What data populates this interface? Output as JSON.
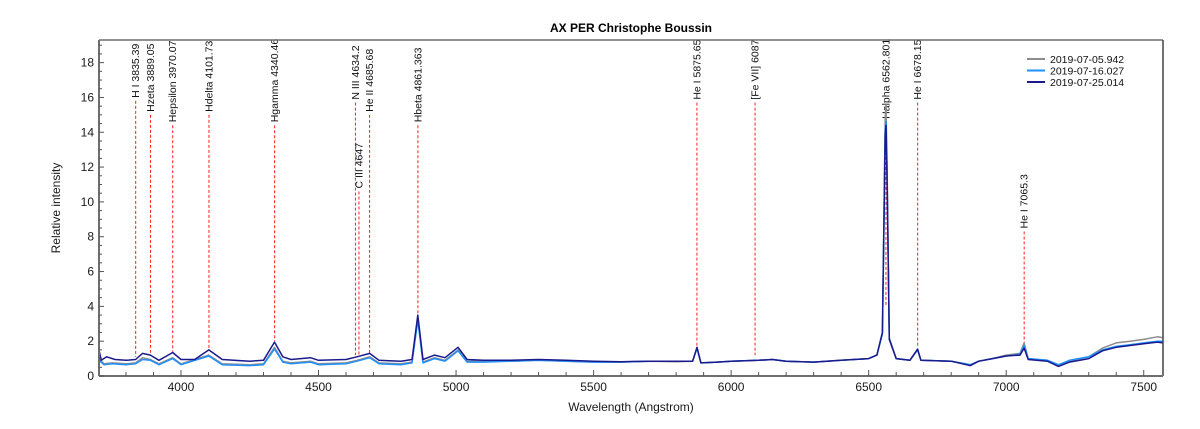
{
  "chart_data": {
    "type": "line",
    "title": "AX PER  Christophe Boussin",
    "xlabel": "Wavelength (Angstrom)",
    "ylabel": "Relative intensity",
    "xlim": [
      3702,
      7570
    ],
    "ylim": [
      0,
      19.3
    ],
    "xticks": [
      4000,
      4500,
      5000,
      5500,
      6000,
      6500,
      7000,
      7500
    ],
    "yticks": [
      0,
      2,
      4,
      6,
      8,
      10,
      12,
      14,
      16,
      18
    ],
    "grid": false,
    "legend_position": "upper right",
    "series": [
      {
        "name": "2019-07-05.942",
        "color": "#8c8c8c",
        "points": [
          [
            3702,
            1.0
          ],
          [
            3720,
            0.7
          ],
          [
            3750,
            0.75
          ],
          [
            3800,
            0.7
          ],
          [
            3835,
            0.75
          ],
          [
            3860,
            1.05
          ],
          [
            3889,
            0.95
          ],
          [
            3920,
            0.7
          ],
          [
            3970,
            1.05
          ],
          [
            4000,
            0.7
          ],
          [
            4101,
            1.2
          ],
          [
            4150,
            0.7
          ],
          [
            4250,
            0.65
          ],
          [
            4300,
            0.7
          ],
          [
            4340,
            1.65
          ],
          [
            4370,
            0.85
          ],
          [
            4400,
            0.75
          ],
          [
            4471,
            0.85
          ],
          [
            4500,
            0.7
          ],
          [
            4600,
            0.75
          ],
          [
            4640,
            0.9
          ],
          [
            4686,
            1.1
          ],
          [
            4720,
            0.75
          ],
          [
            4800,
            0.7
          ],
          [
            4840,
            0.8
          ],
          [
            4861,
            3.3
          ],
          [
            4880,
            0.8
          ],
          [
            4922,
            1.05
          ],
          [
            4960,
            0.9
          ],
          [
            5007,
            1.5
          ],
          [
            5040,
            0.85
          ],
          [
            5100,
            0.85
          ],
          [
            5200,
            0.85
          ],
          [
            5300,
            0.9
          ],
          [
            5400,
            0.85
          ],
          [
            5500,
            0.8
          ],
          [
            5600,
            0.8
          ],
          [
            5700,
            0.85
          ],
          [
            5800,
            0.82
          ],
          [
            5860,
            0.85
          ],
          [
            5876,
            1.6
          ],
          [
            5890,
            0.75
          ],
          [
            5950,
            0.8
          ],
          [
            6000,
            0.85
          ],
          [
            6100,
            0.9
          ],
          [
            6150,
            0.95
          ],
          [
            6200,
            0.85
          ],
          [
            6300,
            0.8
          ],
          [
            6400,
            0.9
          ],
          [
            6500,
            1.0
          ],
          [
            6530,
            1.2
          ],
          [
            6550,
            2.5
          ],
          [
            6560,
            14.8
          ],
          [
            6563,
            15.6
          ],
          [
            6567,
            12.0
          ],
          [
            6575,
            2.2
          ],
          [
            6600,
            1.0
          ],
          [
            6650,
            0.9
          ],
          [
            6678,
            1.5
          ],
          [
            6690,
            0.9
          ],
          [
            6800,
            0.85
          ],
          [
            6870,
            0.65
          ],
          [
            6900,
            0.85
          ],
          [
            6950,
            1.0
          ],
          [
            7000,
            1.2
          ],
          [
            7050,
            1.3
          ],
          [
            7065,
            1.9
          ],
          [
            7080,
            1.0
          ],
          [
            7150,
            0.9
          ],
          [
            7190,
            0.6
          ],
          [
            7230,
            0.85
          ],
          [
            7300,
            1.1
          ],
          [
            7350,
            1.6
          ],
          [
            7400,
            1.9
          ],
          [
            7450,
            2.0
          ],
          [
            7500,
            2.1
          ],
          [
            7550,
            2.25
          ],
          [
            7570,
            2.2
          ]
        ]
      },
      {
        "name": "2019-07-16.027",
        "color": "#1e90ff",
        "points": [
          [
            3702,
            0.9
          ],
          [
            3720,
            0.65
          ],
          [
            3750,
            0.7
          ],
          [
            3800,
            0.65
          ],
          [
            3835,
            0.7
          ],
          [
            3860,
            0.95
          ],
          [
            3889,
            0.9
          ],
          [
            3920,
            0.65
          ],
          [
            3970,
            1.0
          ],
          [
            4000,
            0.65
          ],
          [
            4101,
            1.15
          ],
          [
            4150,
            0.65
          ],
          [
            4250,
            0.6
          ],
          [
            4300,
            0.65
          ],
          [
            4340,
            1.55
          ],
          [
            4370,
            0.8
          ],
          [
            4400,
            0.7
          ],
          [
            4471,
            0.8
          ],
          [
            4500,
            0.65
          ],
          [
            4600,
            0.7
          ],
          [
            4640,
            0.85
          ],
          [
            4686,
            1.05
          ],
          [
            4720,
            0.7
          ],
          [
            4800,
            0.65
          ],
          [
            4840,
            0.75
          ],
          [
            4861,
            3.2
          ],
          [
            4880,
            0.75
          ],
          [
            4922,
            1.0
          ],
          [
            4960,
            0.85
          ],
          [
            5007,
            1.45
          ],
          [
            5040,
            0.8
          ],
          [
            5100,
            0.8
          ],
          [
            5200,
            0.85
          ],
          [
            5300,
            0.9
          ],
          [
            5400,
            0.85
          ],
          [
            5500,
            0.8
          ],
          [
            5600,
            0.8
          ],
          [
            5700,
            0.85
          ],
          [
            5800,
            0.85
          ],
          [
            5860,
            0.85
          ],
          [
            5876,
            1.6
          ],
          [
            5890,
            0.75
          ],
          [
            5950,
            0.8
          ],
          [
            6000,
            0.85
          ],
          [
            6100,
            0.9
          ],
          [
            6150,
            0.95
          ],
          [
            6200,
            0.85
          ],
          [
            6300,
            0.8
          ],
          [
            6400,
            0.9
          ],
          [
            6500,
            1.0
          ],
          [
            6530,
            1.2
          ],
          [
            6550,
            2.4
          ],
          [
            6560,
            14.2
          ],
          [
            6563,
            14.6
          ],
          [
            6567,
            11.5
          ],
          [
            6575,
            2.1
          ],
          [
            6600,
            1.0
          ],
          [
            6650,
            0.9
          ],
          [
            6678,
            1.5
          ],
          [
            6690,
            0.9
          ],
          [
            6800,
            0.85
          ],
          [
            6870,
            0.65
          ],
          [
            6900,
            0.85
          ],
          [
            6950,
            1.0
          ],
          [
            7000,
            1.15
          ],
          [
            7050,
            1.25
          ],
          [
            7065,
            1.75
          ],
          [
            7080,
            1.0
          ],
          [
            7150,
            0.9
          ],
          [
            7190,
            0.65
          ],
          [
            7230,
            0.9
          ],
          [
            7300,
            1.1
          ],
          [
            7350,
            1.5
          ],
          [
            7400,
            1.7
          ],
          [
            7450,
            1.8
          ],
          [
            7500,
            1.9
          ],
          [
            7550,
            2.0
          ],
          [
            7570,
            2.0
          ]
        ]
      },
      {
        "name": "2019-07-25.014",
        "color": "#1a1a8c",
        "points": [
          [
            3702,
            1.5
          ],
          [
            3710,
            0.9
          ],
          [
            3730,
            1.1
          ],
          [
            3760,
            0.95
          ],
          [
            3800,
            0.9
          ],
          [
            3835,
            0.95
          ],
          [
            3860,
            1.3
          ],
          [
            3889,
            1.2
          ],
          [
            3920,
            0.9
          ],
          [
            3970,
            1.35
          ],
          [
            4000,
            0.95
          ],
          [
            4050,
            0.95
          ],
          [
            4101,
            1.5
          ],
          [
            4150,
            0.95
          ],
          [
            4250,
            0.85
          ],
          [
            4300,
            0.9
          ],
          [
            4340,
            1.95
          ],
          [
            4370,
            1.1
          ],
          [
            4400,
            0.95
          ],
          [
            4471,
            1.05
          ],
          [
            4500,
            0.9
          ],
          [
            4600,
            0.95
          ],
          [
            4640,
            1.1
          ],
          [
            4686,
            1.3
          ],
          [
            4720,
            0.9
          ],
          [
            4800,
            0.85
          ],
          [
            4840,
            0.95
          ],
          [
            4861,
            3.5
          ],
          [
            4880,
            0.95
          ],
          [
            4922,
            1.2
          ],
          [
            4960,
            1.05
          ],
          [
            5007,
            1.65
          ],
          [
            5040,
            0.95
          ],
          [
            5100,
            0.9
          ],
          [
            5200,
            0.9
          ],
          [
            5300,
            0.95
          ],
          [
            5400,
            0.9
          ],
          [
            5500,
            0.85
          ],
          [
            5600,
            0.82
          ],
          [
            5700,
            0.85
          ],
          [
            5800,
            0.85
          ],
          [
            5860,
            0.85
          ],
          [
            5876,
            1.65
          ],
          [
            5890,
            0.75
          ],
          [
            5950,
            0.8
          ],
          [
            6000,
            0.85
          ],
          [
            6100,
            0.9
          ],
          [
            6150,
            0.95
          ],
          [
            6200,
            0.85
          ],
          [
            6300,
            0.8
          ],
          [
            6400,
            0.9
          ],
          [
            6500,
            1.0
          ],
          [
            6530,
            1.2
          ],
          [
            6550,
            2.5
          ],
          [
            6560,
            13.8
          ],
          [
            6563,
            14.4
          ],
          [
            6567,
            11.2
          ],
          [
            6575,
            2.1
          ],
          [
            6600,
            1.0
          ],
          [
            6650,
            0.9
          ],
          [
            6678,
            1.55
          ],
          [
            6690,
            0.9
          ],
          [
            6800,
            0.85
          ],
          [
            6870,
            0.6
          ],
          [
            6900,
            0.85
          ],
          [
            6950,
            1.0
          ],
          [
            7000,
            1.15
          ],
          [
            7050,
            1.2
          ],
          [
            7065,
            1.6
          ],
          [
            7080,
            0.95
          ],
          [
            7150,
            0.85
          ],
          [
            7190,
            0.55
          ],
          [
            7230,
            0.8
          ],
          [
            7300,
            1.0
          ],
          [
            7350,
            1.45
          ],
          [
            7400,
            1.65
          ],
          [
            7450,
            1.75
          ],
          [
            7500,
            1.85
          ],
          [
            7550,
            1.95
          ],
          [
            7570,
            1.9
          ]
        ]
      }
    ],
    "annotations": [
      {
        "label": "H I 3835.39",
        "x": 3835.39,
        "y_top": 15.8,
        "y_bottom": 1.1
      },
      {
        "label": "Hzeta 3889.05",
        "x": 3889.05,
        "y_top": 15.0,
        "y_bottom": 1.3
      },
      {
        "label": "Hepsilon 3970.07",
        "x": 3970.07,
        "y_top": 14.4,
        "y_bottom": 1.4
      },
      {
        "label": "Hdelta 4101.73",
        "x": 4101.73,
        "y_top": 15.0,
        "y_bottom": 1.6
      },
      {
        "label": "Hgamma 4340.46",
        "x": 4340.46,
        "y_top": 14.4,
        "y_bottom": 2.0
      },
      {
        "label": "N III 4634.2",
        "x": 4634.2,
        "y_top": 15.7,
        "y_bottom": 1.2
      },
      {
        "label": "C III 4647",
        "x": 4647.0,
        "y_top": 10.6,
        "y_bottom": 1.2
      },
      {
        "label": "He II 4685.68",
        "x": 4685.68,
        "y_top": 15.0,
        "y_bottom": 1.3
      },
      {
        "label": "Hbeta 4861.363",
        "x": 4861.363,
        "y_top": 14.4,
        "y_bottom": 3.6
      },
      {
        "label": "He I 5875.65",
        "x": 5875.65,
        "y_top": 15.7,
        "y_bottom": 1.7
      },
      {
        "label": "[Fe VII] 6087",
        "x": 6087.0,
        "y_top": 15.7,
        "y_bottom": 1.2
      },
      {
        "label": "Halpha 6562.801",
        "x": 6562.801,
        "y_top": 14.6,
        "y_bottom": 4.0
      },
      {
        "label": "He I 6678.15",
        "x": 6678.15,
        "y_top": 15.7,
        "y_bottom": 1.7
      },
      {
        "label": "He I 7065.3",
        "x": 7065.3,
        "y_top": 8.3,
        "y_bottom": 1.9
      }
    ],
    "annotation_color": "#ff2020"
  }
}
